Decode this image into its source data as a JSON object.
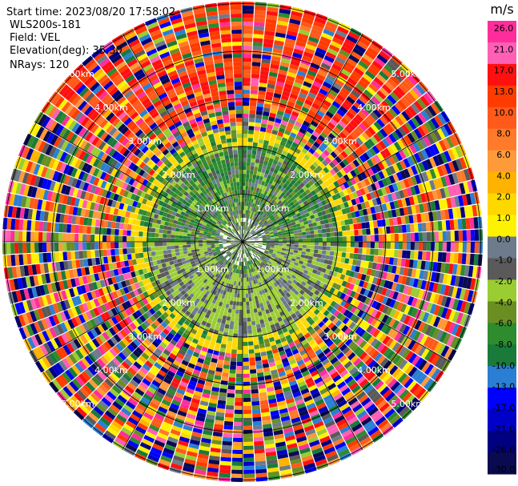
{
  "header": {
    "start_time": "Start time: 2023/08/20 17:58:02",
    "instrument": "WLS200s-181",
    "field": "Field: VEL",
    "elevation": "Elevation(deg): 35.30",
    "nrays": "NRays: 120"
  },
  "colorbar": {
    "unit": "m/s",
    "ticks": [
      "26.0",
      "21.0",
      "17.0",
      "13.0",
      "10.0",
      "8.0",
      "6.0",
      "4.0",
      "2.0",
      "1.0",
      "0.0",
      "-1.0",
      "-2.0",
      "-4.0",
      "-6.0",
      "-8.0",
      "-10.0",
      "-13.0",
      "-17.0",
      "-21.0",
      "-26.0",
      "-30.0"
    ],
    "colors": [
      "#ff2d9b",
      "#ff5fb4",
      "#ff1010",
      "#ff3b00",
      "#ff5a1a",
      "#ff7a2a",
      "#ff9a3a",
      "#ffb300",
      "#ffd800",
      "#fff200",
      "#6d7b8c",
      "#5a5a5a",
      "#9acd32",
      "#6b8e23",
      "#2e8b2e",
      "#1a7a3a",
      "#2a7fd4",
      "#0000ff",
      "#0000c8",
      "#000080",
      "#0a0a50"
    ]
  },
  "rings": {
    "labels": [
      "1.00km",
      "2.00km",
      "3.00km",
      "4.00km",
      "5.00km"
    ]
  }
}
